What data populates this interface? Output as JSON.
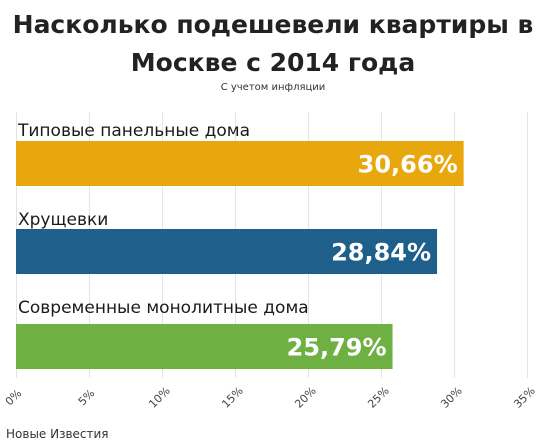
{
  "chart_data": {
    "type": "bar",
    "orientation": "horizontal",
    "title": "Насколько подешевели квартиры в Москве с 2014 года",
    "subtitle": "С учетом инфляции",
    "categories": [
      "Типовые панельные дома",
      "Хрущевки",
      "Современные монолитные дома"
    ],
    "values": [
      30.66,
      28.84,
      25.79
    ],
    "value_labels": [
      "30,66%",
      "28,84%",
      "25,79%"
    ],
    "colors": [
      "#e8a70c",
      "#1f5f8b",
      "#6fb043"
    ],
    "xlim": [
      0,
      35
    ],
    "ticks": [
      0,
      5,
      10,
      15,
      20,
      25,
      30,
      35
    ],
    "tick_labels": [
      "0%",
      "5%",
      "10%",
      "15%",
      "20%",
      "25%",
      "30%",
      "35%"
    ],
    "grid": true,
    "xlabel": "",
    "ylabel": ""
  },
  "source": "Новые Известия"
}
